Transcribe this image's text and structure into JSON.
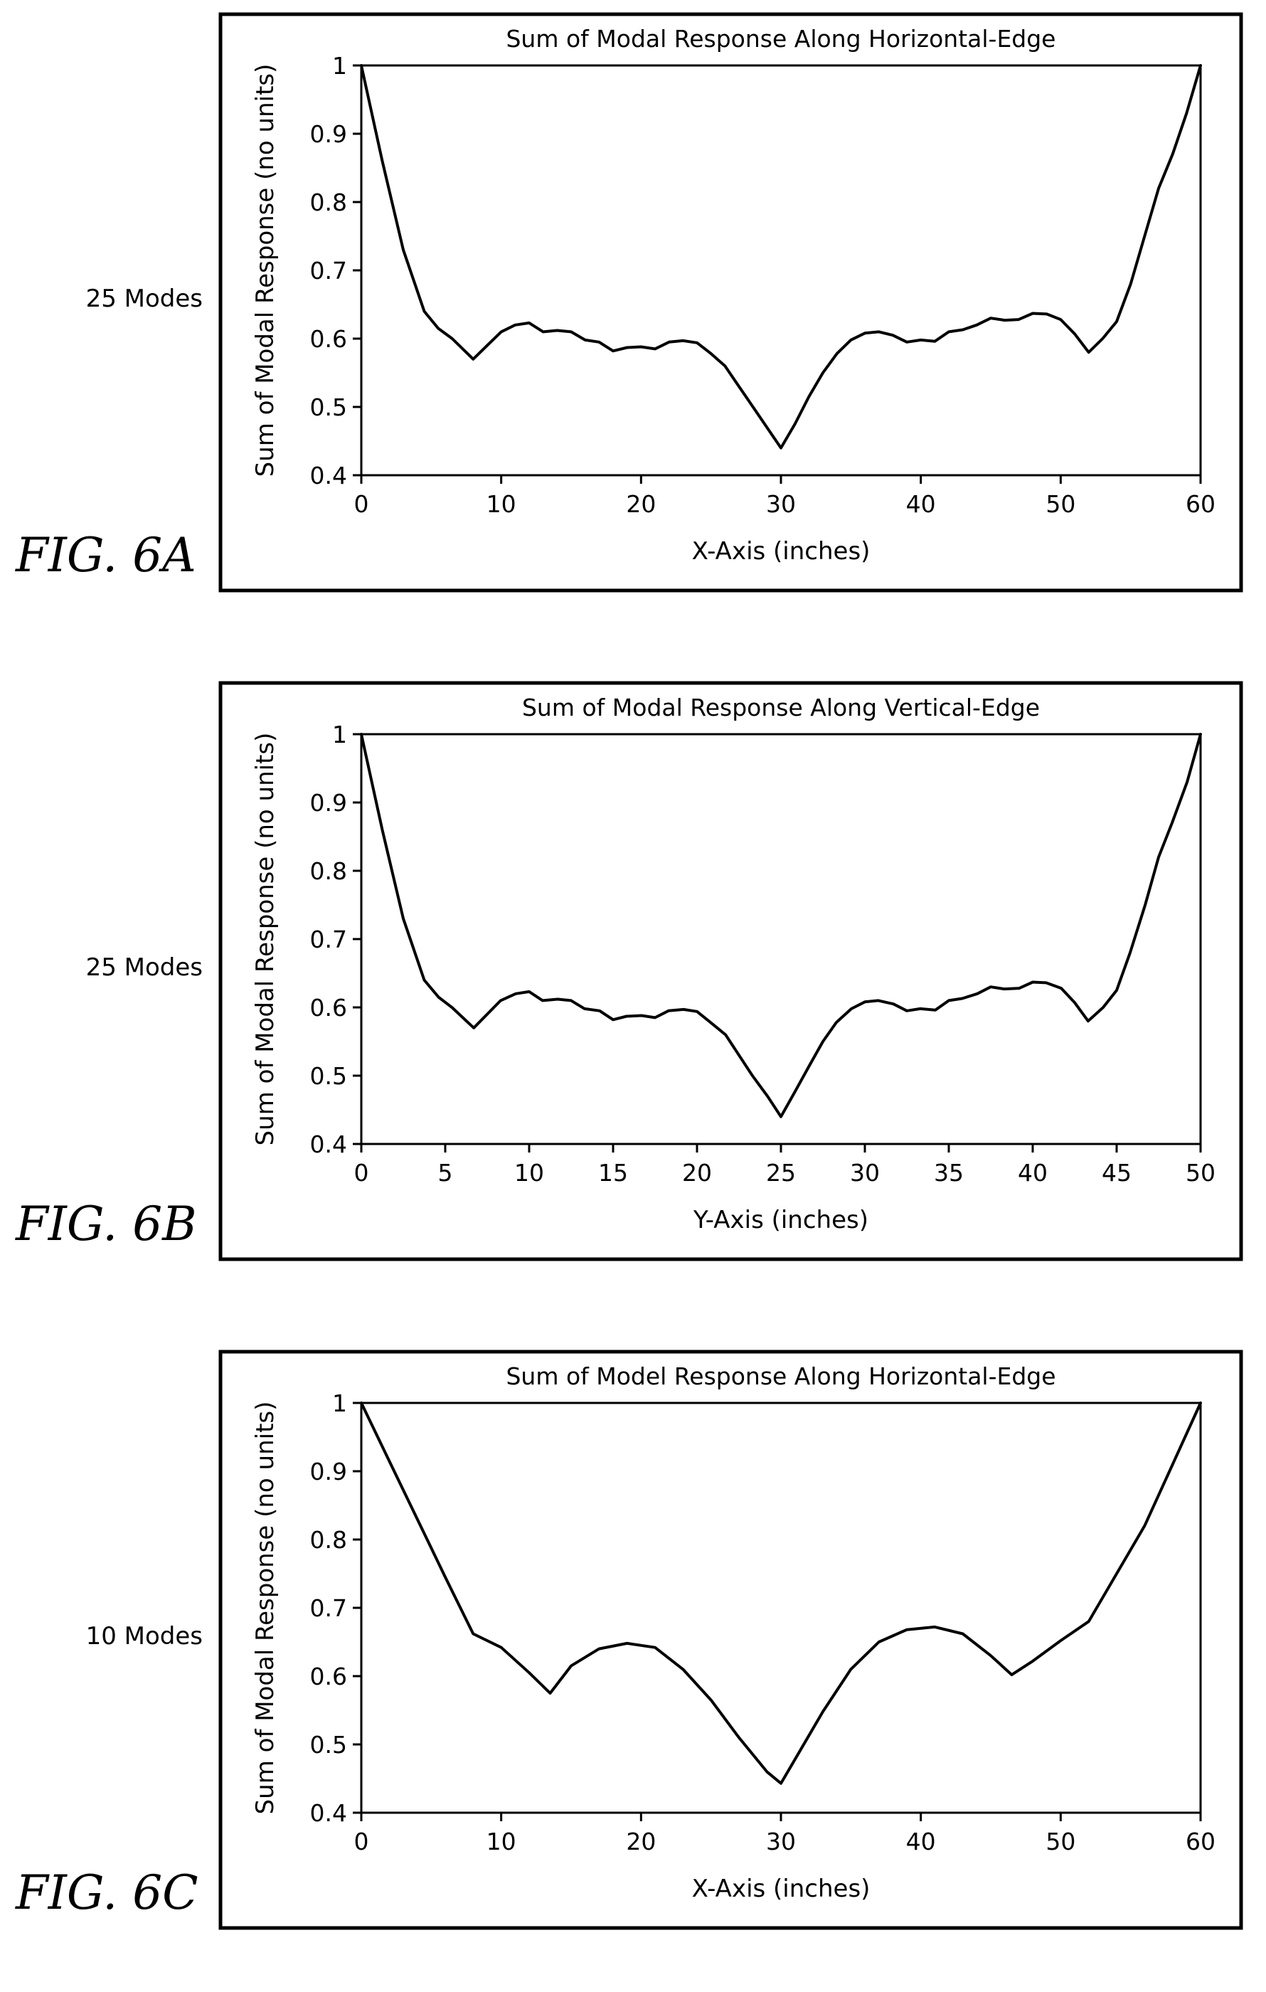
{
  "figures": [
    {
      "fig_label": "FIG. 6A",
      "modes_label": "25 Modes",
      "chart_data": {
        "type": "line",
        "title": "Sum of Modal Response Along Horizontal-Edge",
        "xlabel": "X-Axis (inches)",
        "ylabel": "Sum of Modal Response (no units)",
        "xlim": [
          0,
          60
        ],
        "ylim": [
          0.4,
          1
        ],
        "xticks": [
          0,
          10,
          20,
          30,
          40,
          50,
          60
        ],
        "yticks": [
          0.4,
          0.5,
          0.6,
          0.7,
          0.8,
          0.9,
          1
        ],
        "grid": false,
        "x": [
          0,
          1.5,
          3,
          4.5,
          5.5,
          6.5,
          8,
          9,
          10,
          11,
          12,
          13,
          14,
          15,
          16,
          17,
          18,
          19,
          20,
          21,
          22,
          23,
          24,
          25,
          26,
          27,
          28,
          29,
          30,
          31,
          32,
          33,
          34,
          35,
          36,
          37,
          38,
          39,
          40,
          41,
          42,
          43,
          44,
          45,
          46,
          47,
          48,
          49,
          50,
          51,
          52,
          53,
          54,
          55,
          56,
          57,
          58,
          59,
          60
        ],
        "y": [
          1.0,
          0.86,
          0.73,
          0.64,
          0.615,
          0.6,
          0.57,
          0.59,
          0.61,
          0.62,
          0.623,
          0.61,
          0.612,
          0.61,
          0.598,
          0.595,
          0.582,
          0.587,
          0.588,
          0.585,
          0.595,
          0.597,
          0.594,
          0.578,
          0.56,
          0.53,
          0.5,
          0.47,
          0.44,
          0.475,
          0.515,
          0.55,
          0.578,
          0.598,
          0.608,
          0.61,
          0.605,
          0.595,
          0.598,
          0.596,
          0.61,
          0.613,
          0.62,
          0.63,
          0.627,
          0.628,
          0.637,
          0.636,
          0.628,
          0.607,
          0.58,
          0.6,
          0.625,
          0.68,
          0.75,
          0.82,
          0.87,
          0.93,
          1.0
        ]
      }
    },
    {
      "fig_label": "FIG. 6B",
      "modes_label": "25 Modes",
      "chart_data": {
        "type": "line",
        "title": "Sum of Modal Response Along Vertical-Edge",
        "xlabel": "Y-Axis (inches)",
        "ylabel": "Sum of Modal Response (no units)",
        "xlim": [
          0,
          50
        ],
        "ylim": [
          0.4,
          1
        ],
        "xticks": [
          0,
          5,
          10,
          15,
          20,
          25,
          30,
          35,
          40,
          45,
          50
        ],
        "yticks": [
          0.4,
          0.5,
          0.6,
          0.7,
          0.8,
          0.9,
          1
        ],
        "grid": false,
        "x": [
          0,
          1.25,
          2.5,
          3.75,
          4.6,
          5.4,
          6.7,
          7.5,
          8.3,
          9.2,
          10,
          10.8,
          11.7,
          12.5,
          13.3,
          14.2,
          15,
          15.8,
          16.7,
          17.5,
          18.3,
          19.2,
          20,
          20.8,
          21.7,
          22.5,
          23.3,
          24.2,
          25,
          25.8,
          26.7,
          27.5,
          28.3,
          29.2,
          30,
          30.8,
          31.7,
          32.5,
          33.3,
          34.2,
          35,
          35.8,
          36.7,
          37.5,
          38.3,
          39.2,
          40,
          40.8,
          41.7,
          42.5,
          43.3,
          44.2,
          45,
          45.8,
          46.7,
          47.5,
          48.3,
          49.2,
          50
        ],
        "y": [
          1.0,
          0.86,
          0.73,
          0.64,
          0.615,
          0.6,
          0.57,
          0.59,
          0.61,
          0.62,
          0.623,
          0.61,
          0.612,
          0.61,
          0.598,
          0.595,
          0.582,
          0.587,
          0.588,
          0.585,
          0.595,
          0.597,
          0.594,
          0.578,
          0.56,
          0.53,
          0.5,
          0.47,
          0.44,
          0.475,
          0.515,
          0.55,
          0.578,
          0.598,
          0.608,
          0.61,
          0.605,
          0.595,
          0.598,
          0.596,
          0.61,
          0.613,
          0.62,
          0.63,
          0.627,
          0.628,
          0.637,
          0.636,
          0.628,
          0.607,
          0.58,
          0.6,
          0.625,
          0.68,
          0.75,
          0.82,
          0.87,
          0.93,
          1.0
        ]
      }
    },
    {
      "fig_label": "FIG. 6C",
      "modes_label": "10 Modes",
      "chart_data": {
        "type": "line",
        "title": "Sum of Model Response Along Horizontal-Edge",
        "xlabel": "X-Axis (inches)",
        "ylabel": "Sum of Modal Response (no units)",
        "xlim": [
          0,
          60
        ],
        "ylim": [
          0.4,
          1
        ],
        "xticks": [
          0,
          10,
          20,
          30,
          40,
          50,
          60
        ],
        "yticks": [
          0.4,
          0.5,
          0.6,
          0.7,
          0.8,
          0.9,
          1
        ],
        "grid": false,
        "x": [
          0,
          2,
          4,
          6,
          8,
          10,
          12,
          13.5,
          15,
          17,
          19,
          21,
          23,
          25,
          27,
          29,
          30,
          31,
          33,
          35,
          37,
          39,
          41,
          43,
          45,
          46.5,
          48,
          50,
          52,
          54,
          56,
          58,
          60
        ],
        "y": [
          1.0,
          0.915,
          0.83,
          0.745,
          0.662,
          0.642,
          0.605,
          0.575,
          0.615,
          0.64,
          0.648,
          0.642,
          0.61,
          0.565,
          0.51,
          0.46,
          0.443,
          0.478,
          0.548,
          0.61,
          0.65,
          0.668,
          0.672,
          0.662,
          0.63,
          0.602,
          0.622,
          0.652,
          0.68,
          0.75,
          0.82,
          0.91,
          1.0
        ]
      }
    }
  ]
}
